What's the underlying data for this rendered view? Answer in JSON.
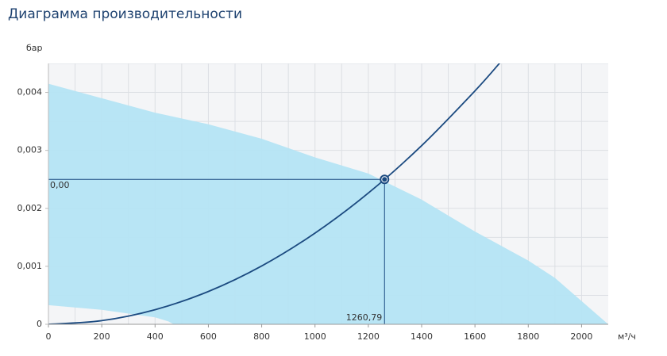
{
  "chart_data": {
    "type": "performance",
    "title": "Диаграмма производительности",
    "ylabel": "бар",
    "xlabel": "м³/ч",
    "xlim": [
      0,
      2100
    ],
    "ylim": [
      0,
      0.0045
    ],
    "xticks": [
      0,
      200,
      400,
      600,
      800,
      1000,
      1200,
      1400,
      1600,
      1800,
      2000
    ],
    "yticks": [
      0,
      {
        "value": 0.001,
        "label": "0,001"
      },
      {
        "value": 0.002,
        "label": "0,002"
      },
      {
        "value": 0.003,
        "label": "0,003"
      },
      {
        "value": 0.004,
        "label": "0,004"
      }
    ],
    "x_gridlines": [
      100,
      200,
      300,
      400,
      500,
      600,
      700,
      800,
      900,
      1000,
      1100,
      1200,
      1300,
      1400,
      1500,
      1600,
      1700,
      1800,
      1900,
      2000
    ],
    "y_gridlines": [
      0.0005,
      0.001,
      0.0015,
      0.002,
      0.0025,
      0.003,
      0.0035,
      0.004,
      0.0045
    ],
    "grid": true,
    "area": {
      "color": "#b4e4f4",
      "x": [
        0,
        200,
        400,
        450,
        470,
        600,
        800,
        1000,
        1200,
        1400,
        1600,
        1800,
        1900,
        2000,
        2100
      ],
      "upper": [
        0.00415,
        0.0039,
        0.00365,
        0.0036,
        0.00358,
        0.00345,
        0.0032,
        0.00288,
        0.0026,
        0.00215,
        0.0016,
        0.0011,
        0.0008,
        0.0004,
        0
      ],
      "lower": [
        0.00033,
        0.00025,
        0.00012,
        5e-05,
        0,
        0,
        0,
        0,
        0,
        0,
        0,
        0,
        0,
        0,
        0
      ]
    },
    "curve": {
      "color": "#1b4a80",
      "x": [
        0,
        200,
        400,
        600,
        800,
        1000,
        1200,
        1400,
        1600,
        1700
      ],
      "values": [
        0,
        6.29e-05,
        0.000252,
        0.000566,
        0.001006,
        0.001573,
        0.002264,
        0.003082,
        0.004026,
        0.004545
      ]
    },
    "operating_point": {
      "x": 1260.79,
      "y": 0.0025,
      "x_label": "1260,79",
      "y_label": "0,00"
    }
  }
}
